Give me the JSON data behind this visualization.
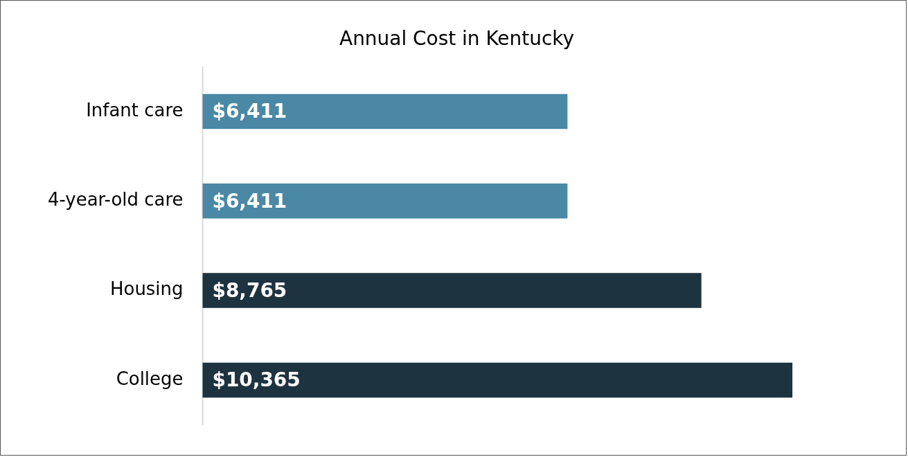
{
  "chart_data": {
    "type": "bar",
    "orientation": "horizontal",
    "title": "Annual Cost in Kentucky",
    "categories": [
      "Infant care",
      "4-year-old care",
      "Housing",
      "College"
    ],
    "values": [
      6411,
      6411,
      8765,
      10365
    ],
    "colors": [
      "#4a88a5",
      "#4a88a5",
      "#1e3340",
      "#1e3340"
    ],
    "value_labels": [
      "$6,411",
      "$6,411",
      "$8,765",
      "$10,365"
    ],
    "tick_labels": "y",
    "grid": false,
    "legend": false
  }
}
